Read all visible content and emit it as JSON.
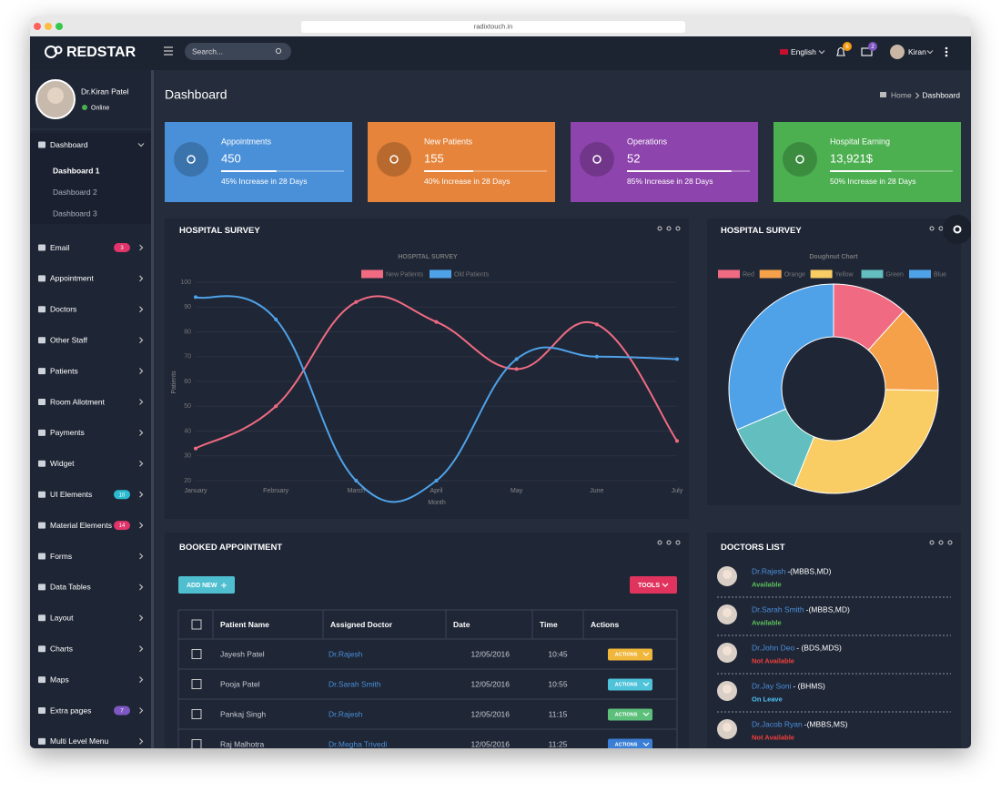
{
  "browser": {
    "url": "radixtouch.in"
  },
  "header": {
    "brand": "REDSTAR",
    "search_placeholder": "Search...",
    "language": "English",
    "notifications": 6,
    "messages": 2,
    "user": "Kiran"
  },
  "sidebar": {
    "profile": {
      "name": "Dr.Kiran Patel",
      "status": "Online"
    },
    "menu": [
      {
        "label": "Dashboard",
        "children": [
          "Dashboard 1",
          "Dashboard 2",
          "Dashboard 3"
        ]
      },
      {
        "label": "Email",
        "badge": 3,
        "badge_color": "#e0346a"
      },
      {
        "label": "Appointment"
      },
      {
        "label": "Doctors"
      },
      {
        "label": "Other Staff"
      },
      {
        "label": "Patients"
      },
      {
        "label": "Room Allotment"
      },
      {
        "label": "Payments"
      },
      {
        "label": "Widget"
      },
      {
        "label": "UI Elements",
        "badge": 10,
        "badge_color": "#2bbbd0"
      },
      {
        "label": "Material Elements",
        "badge": 14,
        "badge_color": "#e0346a"
      },
      {
        "label": "Forms"
      },
      {
        "label": "Data Tables"
      },
      {
        "label": "Layout"
      },
      {
        "label": "Charts"
      },
      {
        "label": "Maps"
      },
      {
        "label": "Extra pages",
        "badge": 7,
        "badge_color": "#7e57c2"
      },
      {
        "label": "Multi Level Menu"
      }
    ]
  },
  "page": {
    "title": "Dashboard",
    "breadcrumb": [
      "Home",
      "Dashboard"
    ]
  },
  "cards": [
    {
      "title": "Appointments",
      "value": "450",
      "progress": 45,
      "note": "45% Increase in 28 Days",
      "color": "#4a90d9"
    },
    {
      "title": "New Patients",
      "value": "155",
      "progress": 40,
      "note": "40% Increase in 28 Days",
      "color": "#e5843a"
    },
    {
      "title": "Operations",
      "value": "52",
      "progress": 85,
      "note": "85% Increase in 28 Days",
      "color": "#8e44ad"
    },
    {
      "title": "Hospital Earning",
      "value": "13,921$",
      "progress": 50,
      "note": "50% Increase in 28 Days",
      "color": "#4caf50"
    }
  ],
  "chart_data": [
    {
      "type": "line",
      "panel_title": "HOSPITAL SURVEY",
      "title": "HOSPITAL SURVEY",
      "x_label": "Month",
      "y_label": "Patients",
      "categories": [
        "January",
        "February",
        "March",
        "April",
        "May",
        "June",
        "July"
      ],
      "series": [
        {
          "name": "New Patients",
          "color": "#f06b82",
          "values": [
            33,
            50,
            92,
            84,
            65,
            83,
            36
          ]
        },
        {
          "name": "Old Patients",
          "color": "#4fa2e8",
          "values": [
            94,
            85,
            20,
            20,
            69,
            70,
            69
          ]
        }
      ],
      "ylim": [
        20,
        100
      ],
      "yticks": [
        20,
        30,
        40,
        50,
        60,
        70,
        80,
        90,
        100
      ],
      "grid": true,
      "legend": "top"
    },
    {
      "type": "doughnut",
      "panel_title": "HOSPITAL SURVEY",
      "title": "Doughnut Chart",
      "categories": [
        "Red",
        "Orange",
        "Yellow",
        "Green",
        "Blue"
      ],
      "values": [
        42,
        49,
        111,
        45,
        113
      ],
      "colors": [
        "#f06b82",
        "#f5a14a",
        "#f9cd64",
        "#63bfbf",
        "#4fa2e8"
      ],
      "legend": "top"
    }
  ],
  "appointments": {
    "title": "BOOKED APPOINTMENT",
    "add_button": "ADD NEW",
    "tools_button": "TOOLS",
    "columns": [
      "Patient Name",
      "Assigned Doctor",
      "Date",
      "Time",
      "Actions"
    ],
    "rows": [
      {
        "patient": "Jayesh Patel",
        "doctor": "Dr.Rajesh",
        "date": "12/05/2016",
        "time": "10:45",
        "action": "ACTIONS",
        "action_color": "#f0b73b"
      },
      {
        "patient": "Pooja Patel",
        "doctor": "Dr.Sarah Smith",
        "date": "12/05/2016",
        "time": "10:55",
        "action": "ACTIONS",
        "action_color": "#4fc3d9"
      },
      {
        "patient": "Pankaj Singh",
        "doctor": "Dr.Rajesh",
        "date": "12/05/2016",
        "time": "11:15",
        "action": "ACTIONS",
        "action_color": "#5cc07a"
      },
      {
        "patient": "Raj Malhotra",
        "doctor": "Dr.Megha Trivedi",
        "date": "12/05/2016",
        "time": "11:25",
        "action": "ACTIONS",
        "action_color": "#3a7fd5"
      }
    ]
  },
  "doctors": {
    "title": "DOCTORS LIST",
    "items": [
      {
        "name": "Dr.Rajesh",
        "degree": "-(MBBS,MD)",
        "status": "Available",
        "status_color": "#5cc05c"
      },
      {
        "name": "Dr.Sarah Smith",
        "degree": "-(MBBS,MD)",
        "status": "Available",
        "status_color": "#5cc05c"
      },
      {
        "name": "Dr.John Deo",
        "degree": "- (BDS,MDS)",
        "status": "Not Available",
        "status_color": "#f0403a"
      },
      {
        "name": "Dr.Jay Soni",
        "degree": "- (BHMS)",
        "status": "On Leave",
        "status_color": "#4fc3f7"
      },
      {
        "name": "Dr.Jacob Ryan",
        "degree": "-(MBBS,MS)",
        "status": "Not Available",
        "status_color": "#f0403a"
      }
    ]
  }
}
